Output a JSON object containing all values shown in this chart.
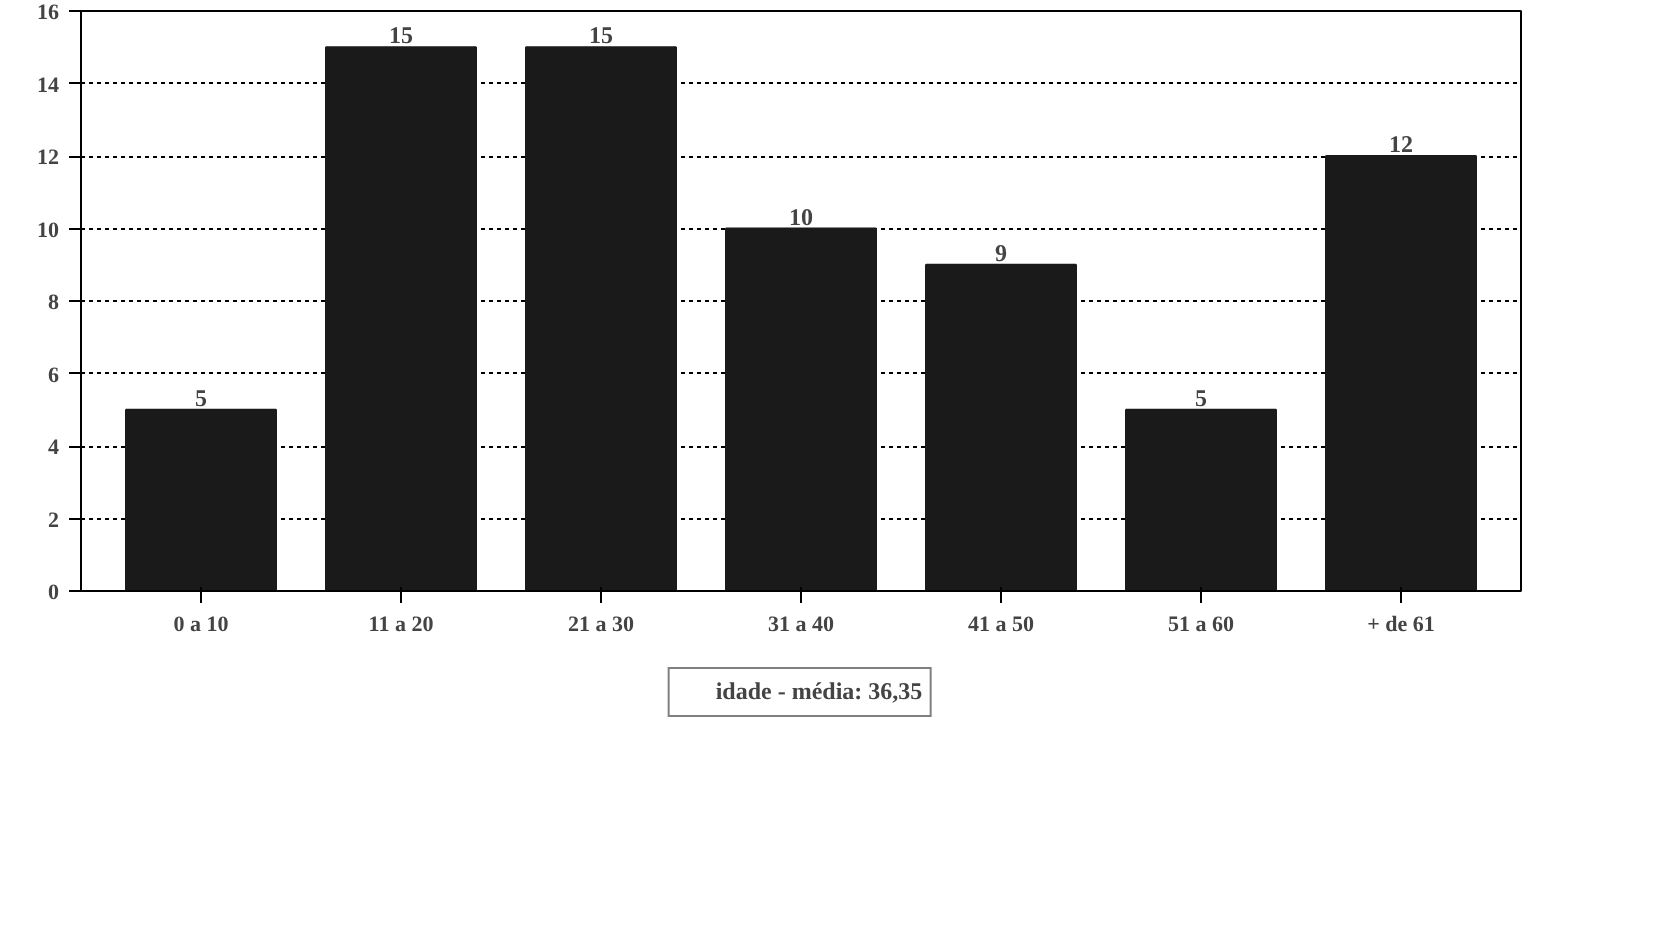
{
  "chart_data": {
    "type": "bar",
    "categories": [
      "0 a 10",
      "11 a 20",
      "21 a 30",
      "31 a 40",
      "41 a 50",
      "51 a 60",
      "+ de 61"
    ],
    "series": [
      {
        "name": "idade - média: 36,35",
        "color": "#1a1a1a",
        "values": [
          5,
          15,
          15,
          10,
          9,
          5,
          12
        ]
      }
    ],
    "ylim": [
      0,
      16
    ],
    "yticks": [
      0,
      2,
      4,
      6,
      8,
      10,
      12,
      14,
      16
    ],
    "grid": "y",
    "legend": "bottom",
    "data_labels": true
  }
}
